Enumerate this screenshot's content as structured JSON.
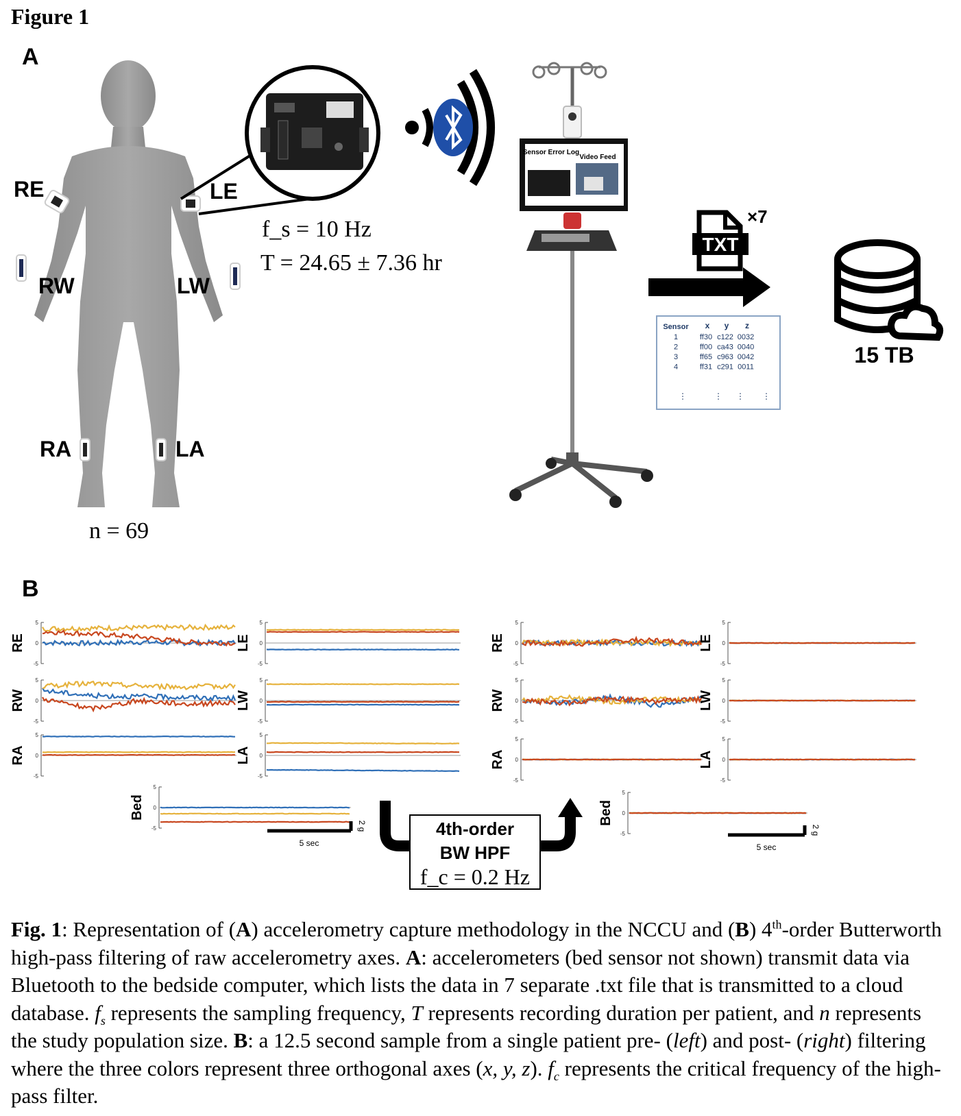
{
  "figure_label": "Figure 1",
  "panel_a": {
    "label": "A",
    "sensor_labels": [
      "RE",
      "LE",
      "RW",
      "LW",
      "RA",
      "LA"
    ],
    "fs_eq": "f_s = 10 Hz",
    "T_eq": "T = 24.65 ± 7.36 hr",
    "n_eq": "n = 69",
    "monitor_titles": [
      "Sensor Error Log",
      "Video Feed"
    ],
    "txt_icon": "TXT",
    "txt_multiplier": "×7",
    "database_size": "15 TB",
    "table": {
      "headers": [
        "Sensor",
        "x",
        "y",
        "z"
      ],
      "rows": [
        [
          "1",
          "ff30",
          "c122",
          "0032"
        ],
        [
          "2",
          "ff00",
          "ca43",
          "0040"
        ],
        [
          "3",
          "ff65",
          "c963",
          "0042"
        ],
        [
          "4",
          "ff31",
          "c291",
          "0011"
        ]
      ],
      "ellipsis": "⋮"
    },
    "icons": [
      "human-figure-icon",
      "sensor-board-icon",
      "bluetooth-icon",
      "wifi-signal-icon",
      "bedside-computer-icon",
      "txt-file-icon",
      "arrow-right-icon",
      "database-cloud-icon"
    ]
  },
  "panel_b": {
    "label": "B",
    "tick_top": "5",
    "tick_mid": "0",
    "tick_bottom": "-5",
    "panels_left": [
      "RE",
      "LE",
      "RW",
      "LW",
      "RA",
      "LA"
    ],
    "bed_label": "Bed",
    "scale_time": "5 sec",
    "scale_amp": "2 g",
    "filter": {
      "line1": "4th-order",
      "line2": "BW HPF",
      "line3": "f_c = 0.2 Hz"
    },
    "axis_colors": {
      "x": "#2f6fb7",
      "y": "#e6b23c",
      "z": "#c8471f"
    }
  },
  "chart_data": [
    {
      "type": "line",
      "title": "RE",
      "panel": "pre-filter",
      "ylim": [
        -5,
        5
      ],
      "series": [
        {
          "values": [
            0.1,
            -0.1,
            0.2,
            0.0,
            0.1
          ]
        },
        {
          "values": [
            3.5,
            3.6,
            3.7,
            3.8,
            3.8
          ]
        },
        {
          "values": [
            2.8,
            2.2,
            1.5,
            0.2,
            0.0
          ]
        }
      ]
    },
    {
      "type": "line",
      "title": "LE",
      "panel": "pre-filter",
      "ylim": [
        -5,
        5
      ],
      "series": [
        {
          "values": [
            -1.6,
            -1.6,
            -1.6,
            -1.6
          ]
        },
        {
          "values": [
            3.2,
            3.2,
            3.2,
            3.2
          ]
        },
        {
          "values": [
            2.7,
            2.7,
            2.7,
            2.7
          ]
        }
      ]
    },
    {
      "type": "line",
      "title": "RW",
      "panel": "pre-filter",
      "ylim": [
        -5,
        5
      ],
      "series": [
        {
          "values": [
            2.5,
            1.2,
            1.0,
            0.8,
            0.5
          ]
        },
        {
          "values": [
            3.5,
            4.2,
            3.6,
            3.3,
            3.6
          ]
        },
        {
          "values": [
            0.5,
            -2.0,
            0.0,
            -0.8,
            -0.5
          ]
        }
      ]
    },
    {
      "type": "line",
      "title": "LW",
      "panel": "pre-filter",
      "ylim": [
        -5,
        5
      ],
      "series": [
        {
          "values": [
            -1.0,
            -1.0,
            -1.0,
            -1.0
          ]
        },
        {
          "values": [
            4.0,
            4.0,
            4.0,
            4.0
          ]
        },
        {
          "values": [
            -0.3,
            -0.3,
            -0.3,
            -0.3
          ]
        }
      ]
    },
    {
      "type": "line",
      "title": "RA",
      "panel": "pre-filter",
      "ylim": [
        -5,
        5
      ],
      "series": [
        {
          "values": [
            4.6,
            4.6,
            4.6,
            4.6
          ]
        },
        {
          "values": [
            0.8,
            0.8,
            0.8,
            0.8
          ]
        },
        {
          "values": [
            0.1,
            0.1,
            0.1,
            0.1
          ]
        }
      ]
    },
    {
      "type": "line",
      "title": "LA",
      "panel": "pre-filter",
      "ylim": [
        -5,
        5
      ],
      "series": [
        {
          "values": [
            -3.5,
            -3.6,
            -3.7,
            -3.8
          ]
        },
        {
          "values": [
            3.0,
            3.0,
            2.9,
            2.9
          ]
        },
        {
          "values": [
            0.8,
            0.8,
            0.8,
            0.8
          ]
        }
      ]
    },
    {
      "type": "line",
      "title": "Bed",
      "panel": "pre-filter",
      "ylim": [
        -5,
        5
      ],
      "series": [
        {
          "values": [
            0.0,
            0.0,
            0.0,
            0.0
          ]
        },
        {
          "values": [
            -1.5,
            -1.5,
            -1.5,
            -1.5
          ]
        },
        {
          "values": [
            -3.5,
            -3.5,
            -3.5,
            -3.5
          ]
        }
      ]
    },
    {
      "type": "line",
      "title": "RE",
      "panel": "post-filter",
      "ylim": [
        -5,
        5
      ],
      "series": [
        {
          "values": [
            0.0,
            0.1,
            -0.1,
            0.0
          ]
        },
        {
          "values": [
            0.0,
            0.2,
            0.0,
            0.0
          ]
        },
        {
          "values": [
            0.0,
            -0.2,
            0.8,
            0.0
          ]
        }
      ]
    },
    {
      "type": "line",
      "title": "LE",
      "panel": "post-filter",
      "ylim": [
        -5,
        5
      ],
      "series": [
        {
          "values": [
            0,
            0,
            0,
            0
          ]
        },
        {
          "values": [
            0,
            0,
            0,
            0
          ]
        },
        {
          "values": [
            0,
            0,
            0,
            0
          ]
        }
      ]
    },
    {
      "type": "line",
      "title": "RW",
      "panel": "post-filter",
      "ylim": [
        -5,
        5
      ],
      "series": [
        {
          "values": [
            0.0,
            -0.5,
            0.8,
            -1.2,
            0.5
          ]
        },
        {
          "values": [
            0.0,
            0.8,
            -0.3,
            0.4,
            0.0
          ]
        },
        {
          "values": [
            0.0,
            -0.6,
            0.5,
            -0.2,
            0.3
          ]
        }
      ]
    },
    {
      "type": "line",
      "title": "LW",
      "panel": "post-filter",
      "ylim": [
        -5,
        5
      ],
      "series": [
        {
          "values": [
            0,
            0,
            0,
            0
          ]
        },
        {
          "values": [
            0,
            0,
            0,
            0
          ]
        },
        {
          "values": [
            0,
            0,
            0,
            0
          ]
        }
      ]
    },
    {
      "type": "line",
      "title": "RA",
      "panel": "post-filter",
      "ylim": [
        -5,
        5
      ],
      "series": [
        {
          "values": [
            0,
            0,
            0,
            0
          ]
        },
        {
          "values": [
            0,
            0,
            0,
            0
          ]
        },
        {
          "values": [
            0,
            0,
            0,
            0
          ]
        }
      ]
    },
    {
      "type": "line",
      "title": "LA",
      "panel": "post-filter",
      "ylim": [
        -5,
        5
      ],
      "series": [
        {
          "values": [
            0,
            0,
            0,
            0
          ]
        },
        {
          "values": [
            0,
            0,
            0,
            0
          ]
        },
        {
          "values": [
            0,
            0,
            0,
            0
          ]
        }
      ]
    },
    {
      "type": "line",
      "title": "Bed",
      "panel": "post-filter",
      "ylim": [
        -5,
        5
      ],
      "series": [
        {
          "values": [
            0,
            0,
            0,
            0
          ]
        },
        {
          "values": [
            0,
            0,
            0,
            0
          ]
        },
        {
          "values": [
            0,
            0,
            0,
            0
          ]
        }
      ]
    }
  ],
  "caption": {
    "fig_label": "Fig. 1",
    "s1": ": Representation of (",
    "A": "A",
    "s2": ") accelerometry capture methodology in the NCCU and (",
    "B": "B",
    "s3": ") 4",
    "th": "th",
    "s4": "-order Butterworth high-pass filtering of raw accelerometry axes. ",
    "A2": "A",
    "s5": ": accelerometers (bed sensor not shown) transmit data via Bluetooth to the bedside computer, which lists the data in 7 separate .txt file that is transmitted to a cloud database. ",
    "fs_f": "f",
    "fs_s": "s",
    "s6": " represents the sampling frequency, ",
    "T": "T",
    "s7": " represents recording duration per patient, and ",
    "n": "n",
    "s8": " represents the study population size. ",
    "B2": "B",
    "s9": ": a 12.5 second sample from a single patient pre- (",
    "left": "left",
    "s10": ") and post- (",
    "right": "right",
    "s11": ") filtering where the three colors represent three orthogonal axes (",
    "xyz": "x, y, z",
    "s12": "). ",
    "fc_f": "f",
    "fc_c": "c",
    "s13": " represents the critical frequency of the high-pass filter."
  }
}
